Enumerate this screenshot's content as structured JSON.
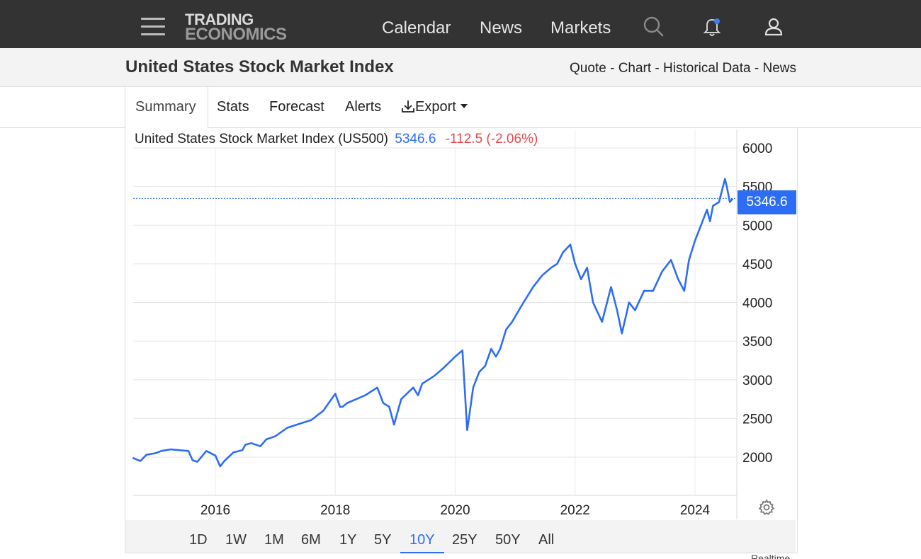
{
  "nav": {
    "logo_line1": "TRADING",
    "logo_line2": "ECONOMICS",
    "links": [
      "Calendar",
      "News",
      "Markets"
    ],
    "icons": [
      "menu-icon",
      "search-icon",
      "bell-icon",
      "user-icon"
    ]
  },
  "title": {
    "page_title": "United States Stock Market Index",
    "subnav": [
      "Quote",
      "Chart",
      "Historical Data",
      "News"
    ],
    "separator": " - "
  },
  "tabs": {
    "summary": "Summary",
    "stats": "Stats",
    "forecast": "Forecast",
    "alerts": "Alerts",
    "export": "Export"
  },
  "chart_header": {
    "name": "United States Stock Market Index (US500)",
    "price": "5346.6",
    "change": "-112.5 (-2.06%)"
  },
  "price_tag": "5346.6",
  "ranges": [
    "1D",
    "1W",
    "1M",
    "6M",
    "1Y",
    "5Y",
    "10Y",
    "25Y",
    "50Y",
    "All"
  ],
  "active_range": "10Y",
  "footer_cutoff": "Realtime",
  "colors": {
    "topbar": "#333333",
    "line": "#2d6df6",
    "negative": "#e5484d",
    "titlebar": "#f3f3f3"
  },
  "chart_data": {
    "type": "line",
    "title": "United States Stock Market Index (US500)",
    "last_value": 5346.6,
    "ylim": [
      1650,
      6200
    ],
    "yticks": [
      2000,
      2500,
      3000,
      3500,
      4000,
      4500,
      5000,
      5500,
      6000
    ],
    "xticks": [
      2016,
      2018,
      2020,
      2022,
      2024
    ],
    "xlim": [
      2014.62,
      2024.63
    ],
    "grid": true,
    "series": [
      {
        "x": [
          2014.62,
          2014.75,
          2014.85,
          2015.0,
          2015.1,
          2015.25,
          2015.4,
          2015.55,
          2015.62,
          2015.7,
          2015.85,
          2016.0,
          2016.08,
          2016.15,
          2016.3,
          2016.45,
          2016.5,
          2016.6,
          2016.75,
          2016.85,
          2017.0,
          2017.2,
          2017.4,
          2017.6,
          2017.8,
          2018.0,
          2018.08,
          2018.12,
          2018.2,
          2018.35,
          2018.5,
          2018.7,
          2018.8,
          2018.9,
          2018.98,
          2019.1,
          2019.3,
          2019.38,
          2019.45,
          2019.55,
          2019.65,
          2019.8,
          2020.0,
          2020.12,
          2020.15,
          2020.2,
          2020.22,
          2020.3,
          2020.4,
          2020.5,
          2020.6,
          2020.68,
          2020.75,
          2020.85,
          2020.95,
          2021.1,
          2021.3,
          2021.45,
          2021.6,
          2021.7,
          2021.8,
          2021.92,
          2022.0,
          2022.1,
          2022.2,
          2022.3,
          2022.45,
          2022.6,
          2022.7,
          2022.78,
          2022.9,
          2023.0,
          2023.15,
          2023.3,
          2023.45,
          2023.6,
          2023.72,
          2023.82,
          2023.9,
          2024.0,
          2024.1,
          2024.2,
          2024.25,
          2024.3,
          2024.4,
          2024.5,
          2024.53,
          2024.58,
          2024.63
        ],
        "y": [
          1990,
          1950,
          2030,
          2050,
          2080,
          2100,
          2090,
          2080,
          1960,
          1940,
          2080,
          2020,
          1880,
          1950,
          2060,
          2090,
          2160,
          2180,
          2140,
          2230,
          2270,
          2380,
          2430,
          2480,
          2600,
          2820,
          2650,
          2650,
          2700,
          2750,
          2800,
          2900,
          2700,
          2650,
          2420,
          2750,
          2900,
          2800,
          2950,
          3000,
          3050,
          3150,
          3300,
          3380,
          3000,
          2350,
          2450,
          2900,
          3100,
          3180,
          3400,
          3300,
          3400,
          3650,
          3750,
          3950,
          4200,
          4350,
          4450,
          4500,
          4650,
          4750,
          4500,
          4300,
          4450,
          4000,
          3750,
          4200,
          3900,
          3600,
          4000,
          3900,
          4150,
          4150,
          4400,
          4550,
          4300,
          4150,
          4550,
          4800,
          5000,
          5200,
          5050,
          5250,
          5300,
          5600,
          5500,
          5300,
          5346.6
        ]
      }
    ]
  }
}
